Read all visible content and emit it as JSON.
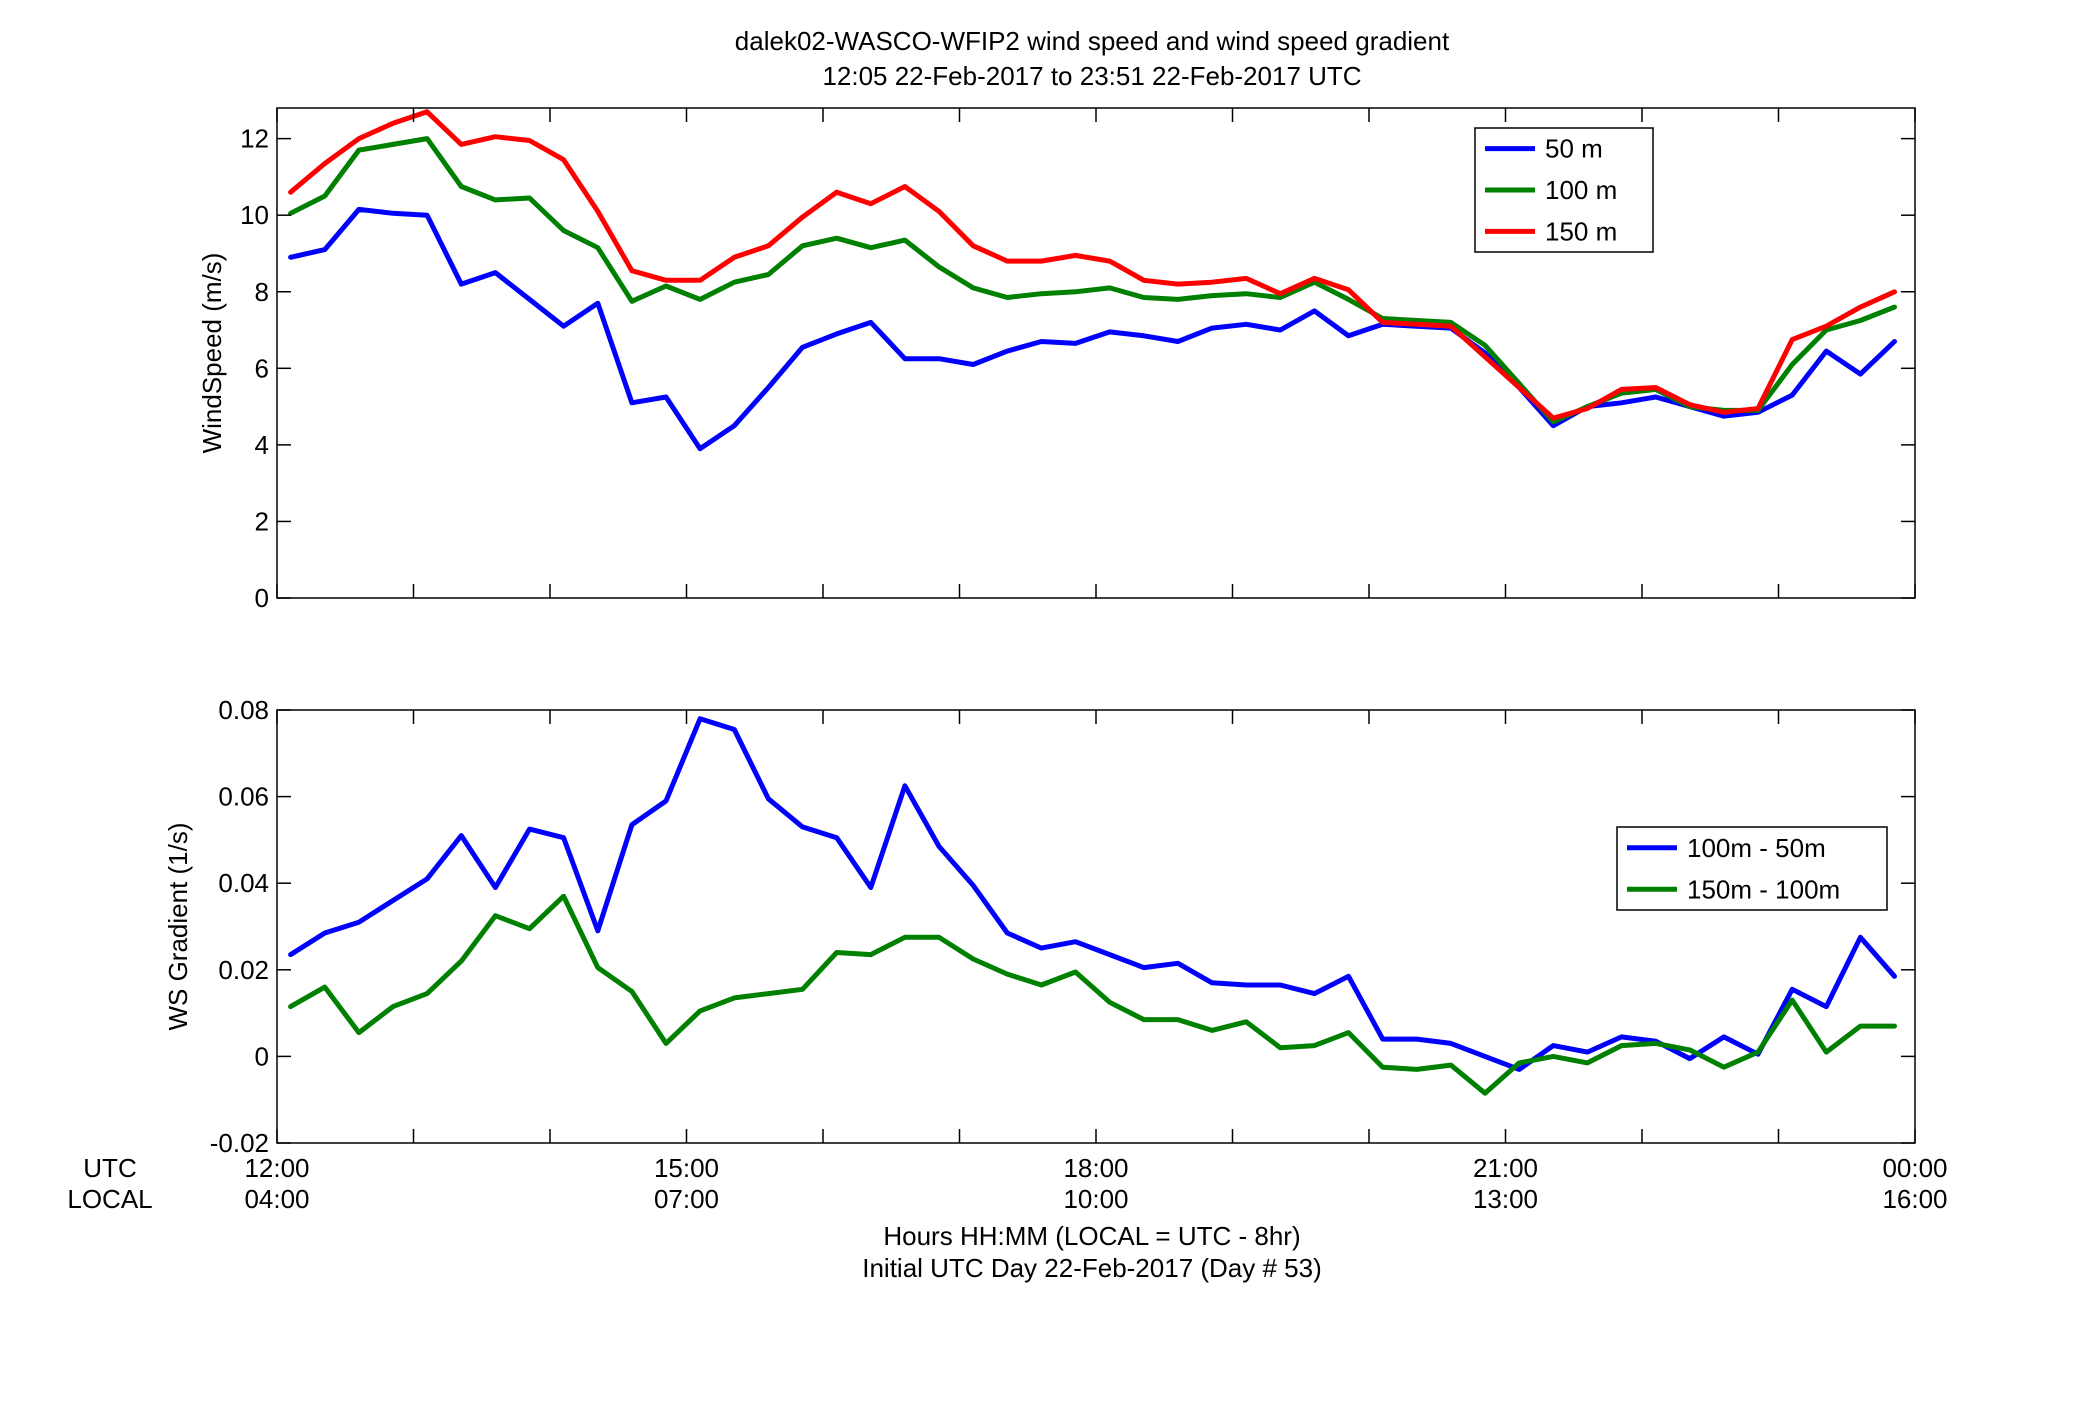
{
  "title": {
    "line1": "dalek02-WASCO-WFIP2  wind speed and wind speed gradient",
    "line2": "12:05 22-Feb-2017 to 23:51 22-Feb-2017  UTC"
  },
  "xaxis": {
    "row_label_utc": "UTC",
    "row_label_local": "LOCAL",
    "utc_ticks": [
      "12:00",
      "15:00",
      "18:00",
      "21:00",
      "00:00"
    ],
    "local_ticks": [
      "04:00",
      "07:00",
      "10:00",
      "13:00",
      "16:00"
    ],
    "label_line1": "Hours HH:MM  (LOCAL = UTC - 8hr)",
    "label_line2": "Initial UTC Day 22-Feb-2017 (Day # 53)"
  },
  "chart_data": [
    {
      "type": "line",
      "panel": "top",
      "ylabel": "WindSpeed (m/s)",
      "ylim": [
        0,
        12.8
      ],
      "yticks": [
        0,
        2,
        4,
        6,
        8,
        10,
        12
      ],
      "ytick_labels": [
        "0",
        "2",
        "4",
        "6",
        "8",
        "10",
        "12"
      ],
      "xlim": [
        12,
        24
      ],
      "grid": false,
      "legend_position": "top-right",
      "x": [
        12.1,
        12.35,
        12.6,
        12.85,
        13.1,
        13.35,
        13.6,
        13.85,
        14.1,
        14.35,
        14.6,
        14.85,
        15.1,
        15.35,
        15.6,
        15.85,
        16.1,
        16.35,
        16.6,
        16.85,
        17.1,
        17.35,
        17.6,
        17.85,
        18.1,
        18.35,
        18.6,
        18.85,
        19.1,
        19.35,
        19.6,
        19.85,
        20.1,
        20.35,
        20.6,
        20.85,
        21.1,
        21.35,
        21.6,
        21.85,
        22.1,
        22.35,
        22.6,
        22.85,
        23.1,
        23.35,
        23.6,
        23.85
      ],
      "series": [
        {
          "name": "50 m",
          "color": "#0000ff",
          "values": [
            8.9,
            9.1,
            10.15,
            10.05,
            10.0,
            8.2,
            8.5,
            7.8,
            7.1,
            7.7,
            5.1,
            5.25,
            3.9,
            4.5,
            5.5,
            6.55,
            6.9,
            7.2,
            6.25,
            6.25,
            6.1,
            6.45,
            6.7,
            6.65,
            6.95,
            6.85,
            6.7,
            7.05,
            7.15,
            7.0,
            7.5,
            6.85,
            7.15,
            7.1,
            7.05,
            6.4,
            5.5,
            4.5,
            5.0,
            5.1,
            5.25,
            5.0,
            4.75,
            4.85,
            5.3,
            6.45,
            5.85,
            6.7
          ]
        },
        {
          "name": "100 m",
          "color": "#008000",
          "values": [
            10.05,
            10.5,
            11.7,
            11.85,
            12.0,
            10.75,
            10.4,
            10.45,
            9.6,
            9.15,
            7.75,
            8.15,
            7.8,
            8.25,
            8.45,
            9.2,
            9.4,
            9.15,
            9.35,
            8.65,
            8.1,
            7.85,
            7.95,
            8.0,
            8.1,
            7.85,
            7.8,
            7.9,
            7.95,
            7.85,
            8.25,
            7.8,
            7.3,
            7.25,
            7.2,
            6.6,
            5.6,
            4.6,
            5.0,
            5.35,
            5.45,
            5.0,
            4.9,
            4.9,
            6.1,
            7.0,
            7.25,
            7.6
          ]
        },
        {
          "name": "150 m",
          "color": "#ff0000",
          "values": [
            10.6,
            11.35,
            12.0,
            12.4,
            12.7,
            11.85,
            12.05,
            11.95,
            11.45,
            10.1,
            8.55,
            8.3,
            8.3,
            8.9,
            9.2,
            9.95,
            10.6,
            10.3,
            10.75,
            10.1,
            9.2,
            8.8,
            8.8,
            8.95,
            8.8,
            8.3,
            8.2,
            8.25,
            8.35,
            7.95,
            8.35,
            8.05,
            7.2,
            7.15,
            7.1,
            6.3,
            5.5,
            4.7,
            4.95,
            5.45,
            5.5,
            5.05,
            4.85,
            4.95,
            6.75,
            7.1,
            7.6,
            8.0
          ]
        }
      ]
    },
    {
      "type": "line",
      "panel": "bottom",
      "ylabel": "WS Gradient (1/s)",
      "ylim": [
        -0.02,
        0.08
      ],
      "yticks": [
        -0.02,
        0,
        0.02,
        0.04,
        0.06,
        0.08
      ],
      "ytick_labels": [
        "-0.02",
        "0",
        "0.02",
        "0.04",
        "0.06",
        "0.08"
      ],
      "xlim": [
        12,
        24
      ],
      "grid": false,
      "legend_position": "center-right",
      "x": [
        12.1,
        12.35,
        12.6,
        12.85,
        13.1,
        13.35,
        13.6,
        13.85,
        14.1,
        14.35,
        14.6,
        14.85,
        15.1,
        15.35,
        15.6,
        15.85,
        16.1,
        16.35,
        16.6,
        16.85,
        17.1,
        17.35,
        17.6,
        17.85,
        18.1,
        18.35,
        18.6,
        18.85,
        19.1,
        19.35,
        19.6,
        19.85,
        20.1,
        20.35,
        20.6,
        20.85,
        21.1,
        21.35,
        21.6,
        21.85,
        22.1,
        22.35,
        22.6,
        22.85,
        23.1,
        23.35,
        23.6,
        23.85
      ],
      "series": [
        {
          "name": "100m - 50m",
          "color": "#0000ff",
          "values": [
            0.0235,
            0.0285,
            0.031,
            0.036,
            0.041,
            0.051,
            0.039,
            0.0525,
            0.0505,
            0.029,
            0.0535,
            0.059,
            0.078,
            0.0755,
            0.0595,
            0.053,
            0.0505,
            0.039,
            0.0625,
            0.0485,
            0.0395,
            0.0285,
            0.025,
            0.0265,
            0.0235,
            0.0205,
            0.0215,
            0.017,
            0.0165,
            0.0165,
            0.0145,
            0.0185,
            0.004,
            0.004,
            0.003,
            0.0,
            -0.003,
            0.0025,
            0.001,
            0.0045,
            0.0035,
            -0.0005,
            0.0045,
            0.0005,
            0.0155,
            0.0115,
            0.0275,
            0.0185
          ]
        },
        {
          "name": "150m - 100m",
          "color": "#008000",
          "values": [
            0.0115,
            0.016,
            0.0055,
            0.0115,
            0.0145,
            0.022,
            0.0325,
            0.0295,
            0.037,
            0.0205,
            0.015,
            0.003,
            0.0105,
            0.0135,
            0.0145,
            0.0155,
            0.024,
            0.0235,
            0.0275,
            0.0275,
            0.0225,
            0.019,
            0.0165,
            0.0195,
            0.0125,
            0.0085,
            0.0085,
            0.006,
            0.008,
            0.002,
            0.0025,
            0.0055,
            -0.0025,
            -0.003,
            -0.002,
            -0.0085,
            -0.0015,
            0.0,
            -0.0015,
            0.0025,
            0.003,
            0.0015,
            -0.0025,
            0.001,
            0.013,
            0.001,
            0.007,
            0.007
          ]
        }
      ]
    }
  ]
}
